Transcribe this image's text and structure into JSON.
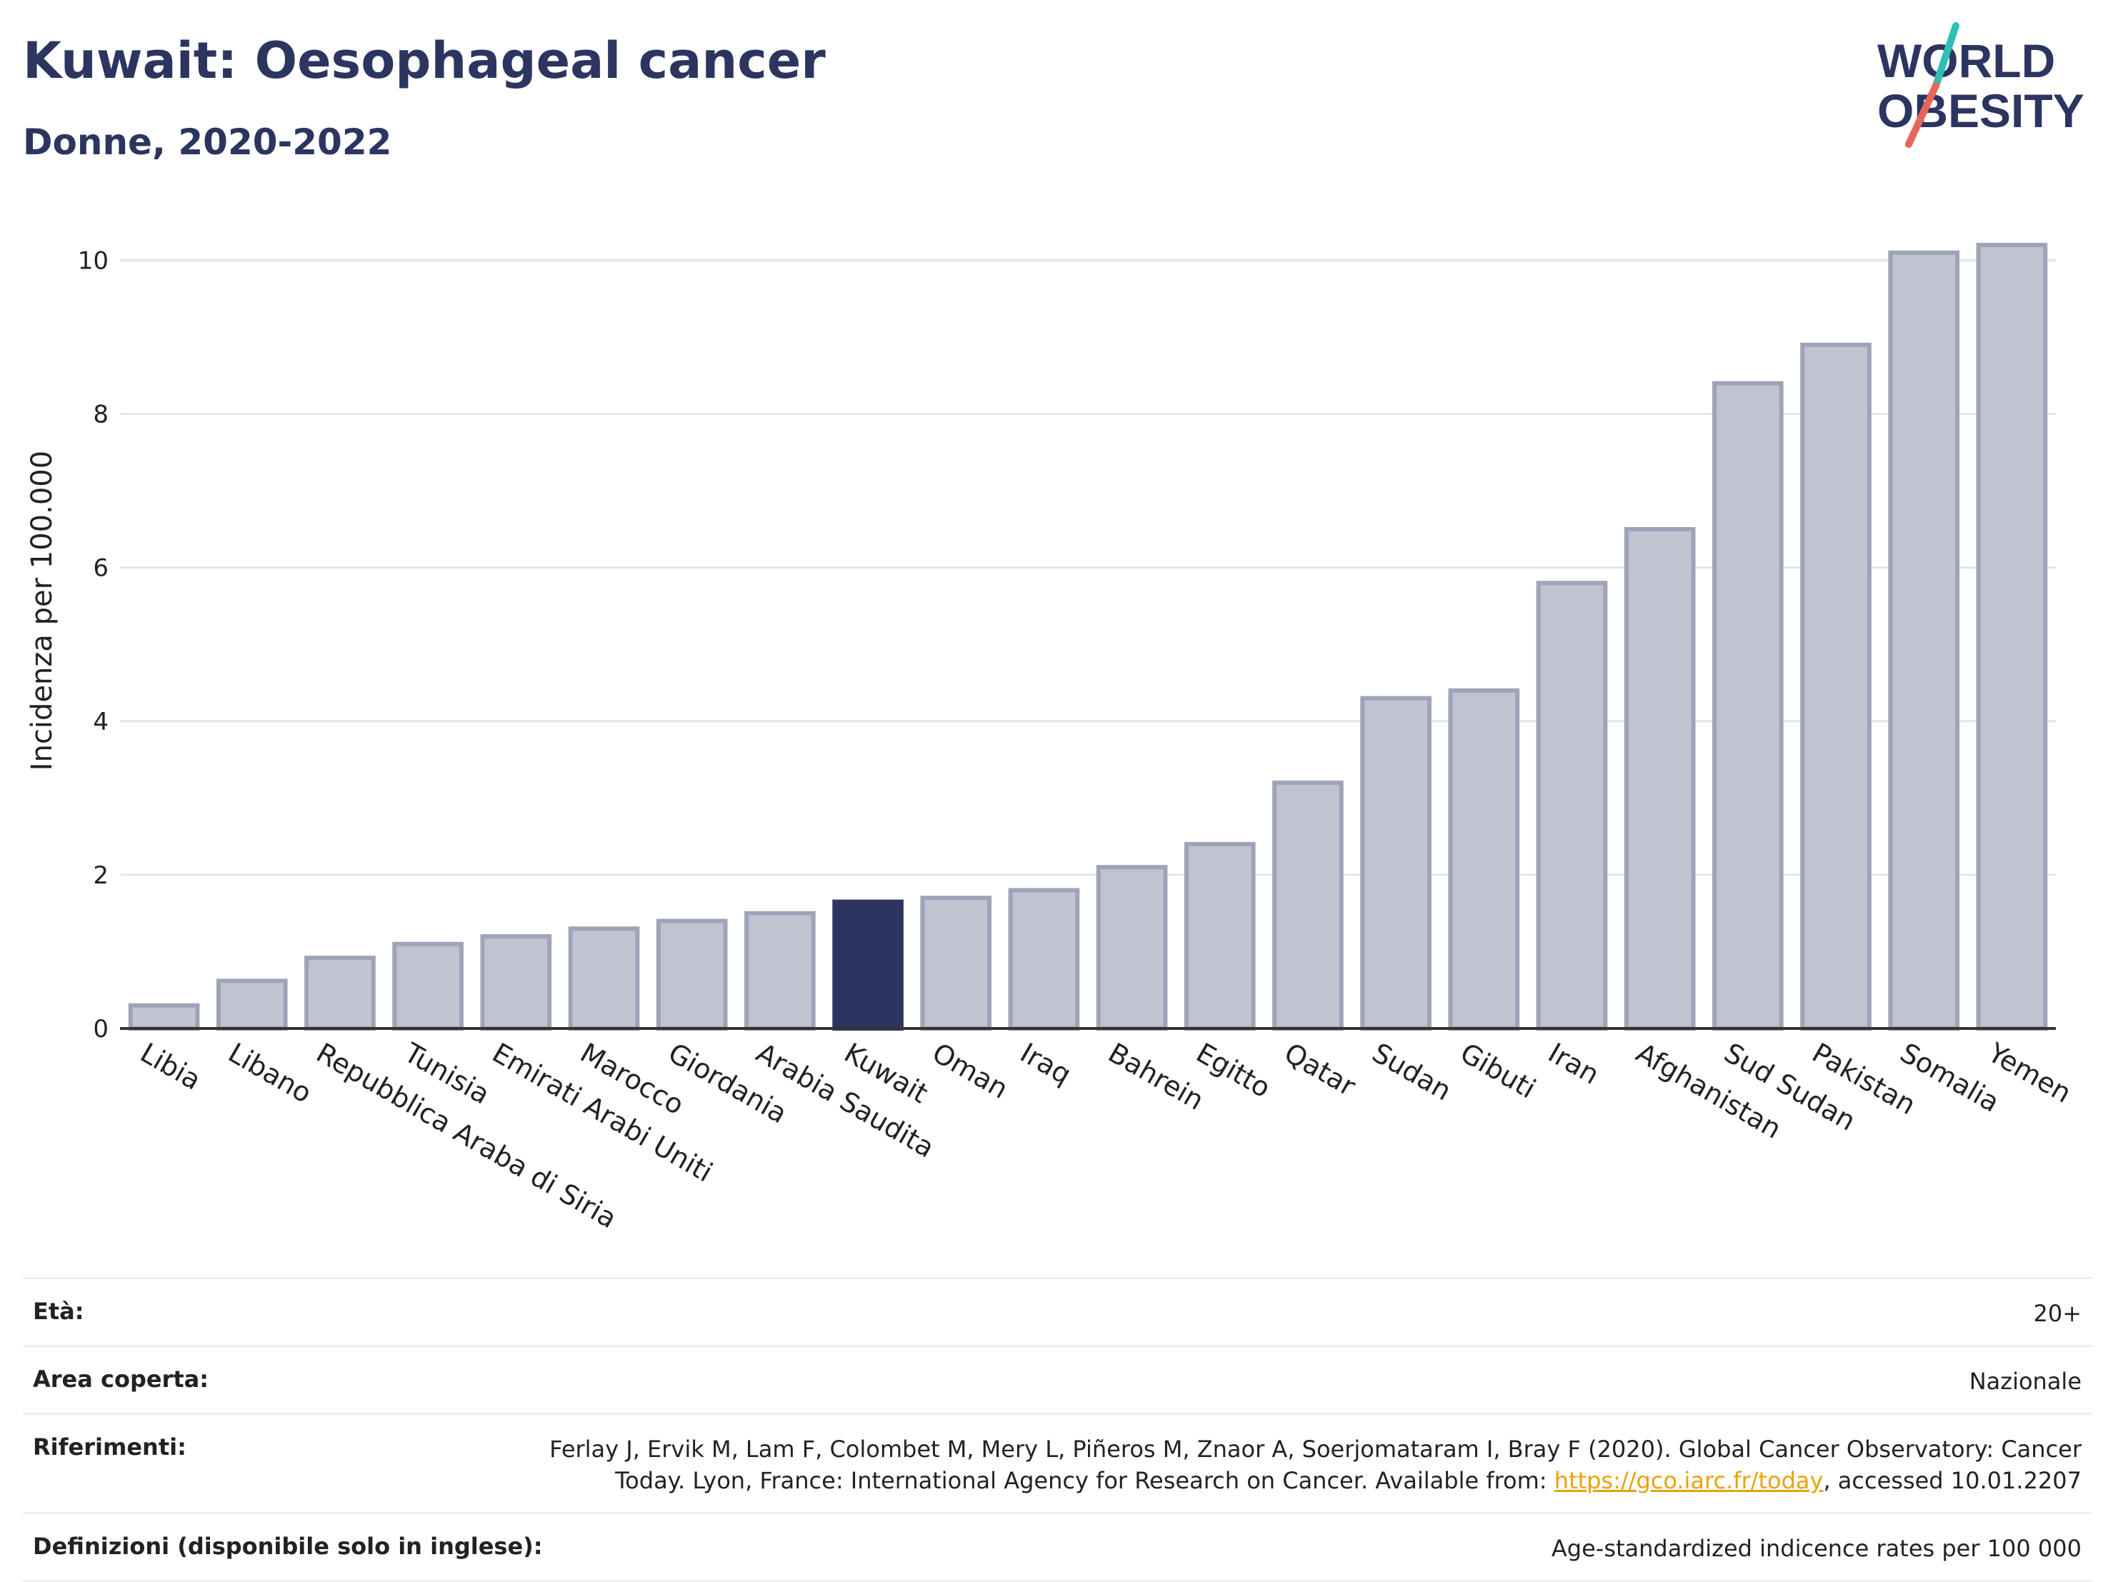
{
  "header": {
    "title": "Kuwait: Oesophageal cancer",
    "subtitle": "Donne, 2020-2022"
  },
  "logo": {
    "line1": "WORLD",
    "line2": "OBESITY",
    "colors": {
      "text": "#2b3560",
      "slash_top": "#2fbfb5",
      "slash_bottom": "#e8655a"
    }
  },
  "chart_data": {
    "type": "bar",
    "ylabel": "Incidenza per 100.000",
    "xlabel": "",
    "ylim": [
      0,
      10.6
    ],
    "yticks": [
      0,
      2,
      4,
      6,
      8,
      10
    ],
    "grid": true,
    "highlight": "Kuwait",
    "colors": {
      "bar": "#c0c3d0",
      "bar_edge": "#9ea3b8",
      "highlight": "#2b3560",
      "axis": "#333333",
      "grid": "#e6e6e6"
    },
    "categories": [
      "Libia",
      "Libano",
      "Repubblica Araba di Siria",
      "Tunisia",
      "Emirati Arabi Uniti",
      "Marocco",
      "Giordania",
      "Arabia Saudita",
      "Kuwait",
      "Oman",
      "Iraq",
      "Bahrein",
      "Egitto",
      "Qatar",
      "Sudan",
      "Gibuti",
      "Iran",
      "Afghanistan",
      "Sud Sudan",
      "Pakistan",
      "Somalia",
      "Yemen"
    ],
    "values": [
      0.3,
      0.62,
      0.92,
      1.1,
      1.2,
      1.3,
      1.4,
      1.5,
      1.65,
      1.7,
      1.8,
      2.1,
      2.4,
      3.2,
      4.3,
      4.4,
      5.8,
      6.5,
      8.4,
      8.9,
      10.1,
      10.2
    ]
  },
  "meta": [
    {
      "label": "Età:",
      "value": "20+"
    },
    {
      "label": "Area coperta:",
      "value": "Nazionale"
    },
    {
      "label": "Riferimenti:",
      "value": "Ferlay J, Ervik M, Lam F, Colombet M, Mery L, Piñeros M, Znaor A, Soerjomataram I, Bray F (2020). Global Cancer Observatory: Cancer Today. Lyon, France: International Agency for Research on Cancer. Available from: ",
      "link": "https://gco.iarc.fr/today",
      "suffix": ", accessed 10.01.2207"
    },
    {
      "label": "Definizioni (disponibile solo in inglese):",
      "value": "Age-standardized indicence rates per 100 000"
    }
  ]
}
